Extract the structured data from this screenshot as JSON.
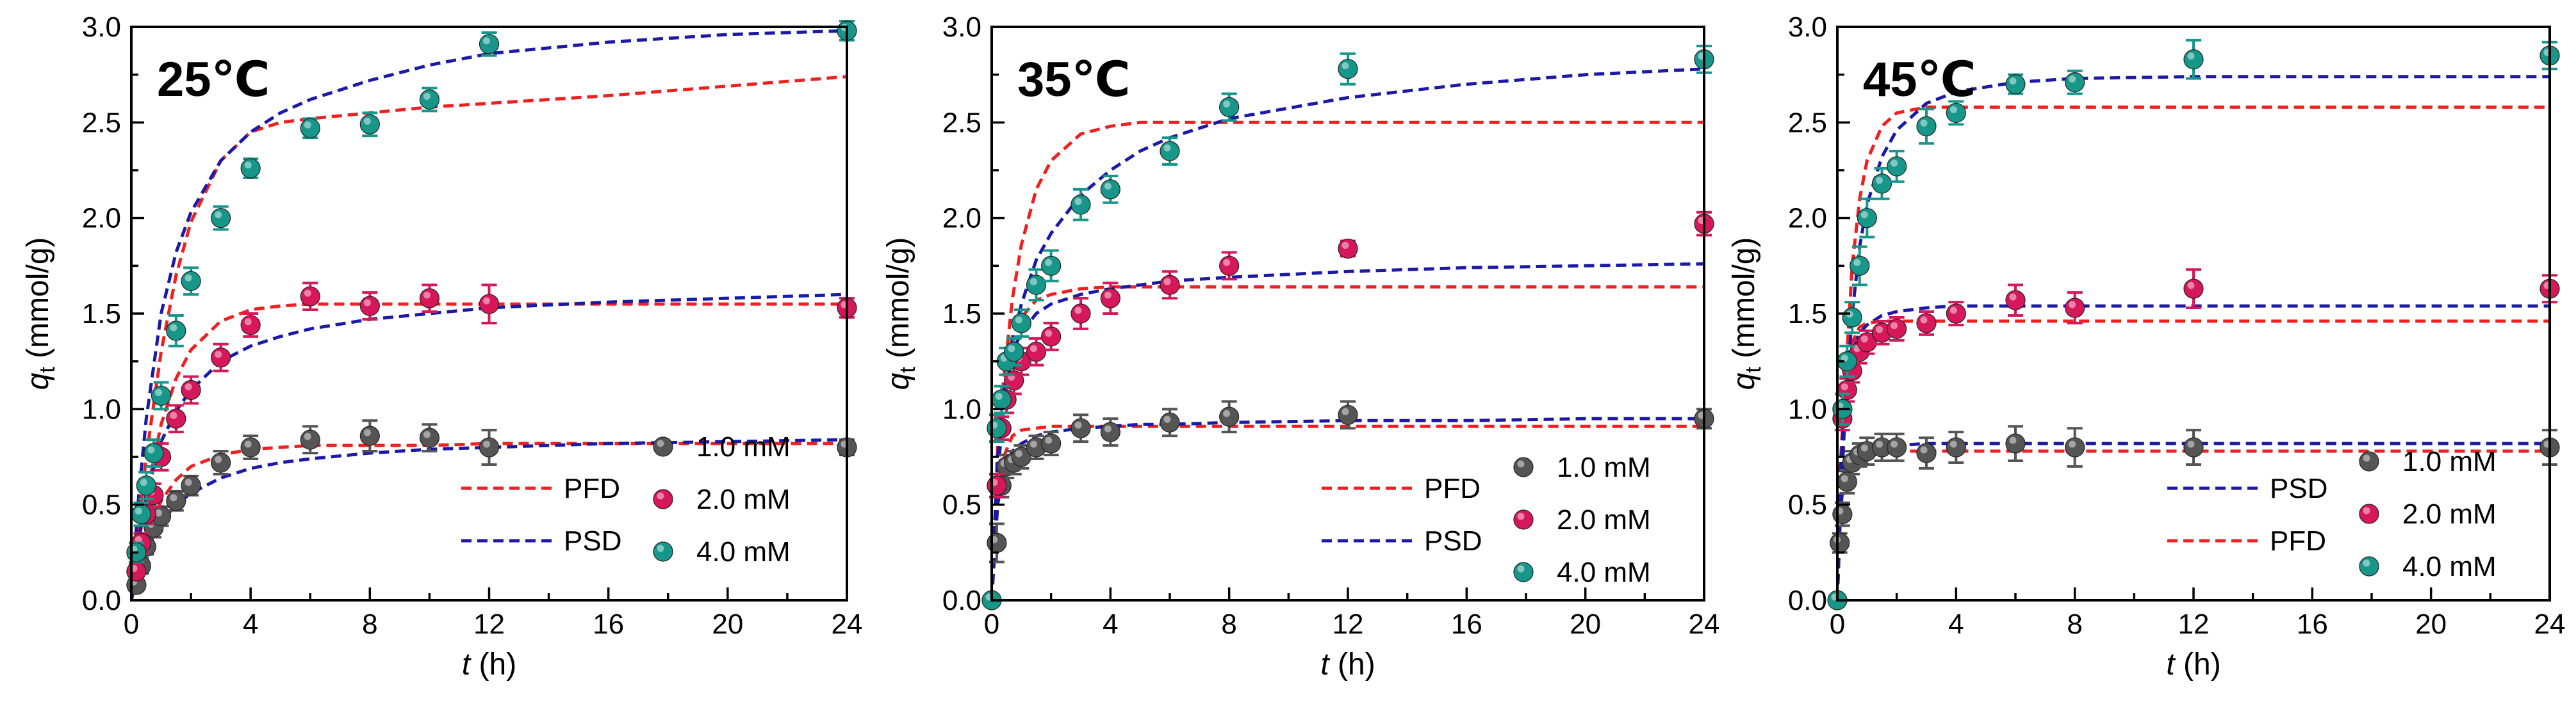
{
  "figure": {
    "ylabel_symbol": "q",
    "ylabel_sub": "t",
    "ylabel_unit": " (mmol/g)",
    "xlabel_symbol": "t",
    "xlabel_unit": " (h)"
  },
  "colors": {
    "c1": "#555555",
    "c2": "#d6175a",
    "c4": "#17968a",
    "pfd": "#ee2020",
    "psd": "#1a1aa6"
  },
  "chart_data": [
    {
      "type": "scatter",
      "title": "25℃",
      "xlabel": "t (h)",
      "ylabel": "qt (mmol/g)",
      "xlim": [
        0,
        24
      ],
      "ylim": [
        0,
        3.0
      ],
      "xticks": [
        "0",
        "4",
        "8",
        "12",
        "16",
        "20",
        "24"
      ],
      "yticks": [
        "0.0",
        "0.5",
        "1.0",
        "1.5",
        "2.0",
        "2.5",
        "3.0"
      ],
      "legend": [
        {
          "name": "PFD",
          "kind": "line",
          "color": "pfd"
        },
        {
          "name": "PSD",
          "kind": "line",
          "color": "psd"
        },
        {
          "name": "1.0 mM",
          "kind": "marker",
          "color": "c1"
        },
        {
          "name": "2.0 mM",
          "kind": "marker",
          "color": "c2"
        },
        {
          "name": "4.0 mM",
          "kind": "marker",
          "color": "c4"
        }
      ],
      "series": [
        {
          "name": "1.0 mM",
          "color": "c1",
          "x": [
            0.17,
            0.33,
            0.5,
            0.75,
            1,
            1.5,
            2,
            3,
            4,
            6,
            8,
            10,
            12,
            24
          ],
          "y": [
            0.08,
            0.18,
            0.28,
            0.38,
            0.44,
            0.52,
            0.6,
            0.72,
            0.8,
            0.84,
            0.86,
            0.85,
            0.8,
            0.8
          ],
          "err": [
            0.03,
            0.04,
            0.04,
            0.05,
            0.05,
            0.05,
            0.05,
            0.06,
            0.06,
            0.07,
            0.08,
            0.07,
            0.09,
            0.04
          ]
        },
        {
          "name": "2.0 mM",
          "color": "c2",
          "x": [
            0.17,
            0.33,
            0.5,
            0.75,
            1,
            1.5,
            2,
            3,
            4,
            6,
            8,
            10,
            12,
            24
          ],
          "y": [
            0.15,
            0.3,
            0.45,
            0.55,
            0.75,
            0.95,
            1.1,
            1.27,
            1.44,
            1.59,
            1.54,
            1.58,
            1.55,
            1.53
          ],
          "err": [
            0.04,
            0.05,
            0.05,
            0.06,
            0.07,
            0.07,
            0.07,
            0.07,
            0.06,
            0.07,
            0.07,
            0.07,
            0.1,
            0.05
          ]
        },
        {
          "name": "4.0 mM",
          "color": "c4",
          "x": [
            0.17,
            0.33,
            0.5,
            0.75,
            1,
            1.5,
            2,
            3,
            4,
            6,
            8,
            10,
            12,
            24
          ],
          "y": [
            0.25,
            0.45,
            0.6,
            0.77,
            1.07,
            1.41,
            1.67,
            2.0,
            2.26,
            2.47,
            2.49,
            2.62,
            2.91,
            2.98
          ],
          "err": [
            0.05,
            0.06,
            0.07,
            0.07,
            0.07,
            0.08,
            0.07,
            0.06,
            0.05,
            0.05,
            0.06,
            0.06,
            0.06,
            0.05
          ]
        }
      ],
      "fits": [
        {
          "model": "PFD",
          "color": "pfd",
          "x": [
            0,
            0.25,
            0.5,
            1,
            1.5,
            2,
            3,
            4,
            5,
            6,
            8,
            10,
            12,
            16,
            20,
            24
          ],
          "curves": [
            [
              0,
              0.18,
              0.33,
              0.52,
              0.63,
              0.7,
              0.76,
              0.79,
              0.8,
              0.81,
              0.81,
              0.81,
              0.82,
              0.82,
              0.82,
              0.82
            ],
            [
              0,
              0.3,
              0.55,
              0.92,
              1.16,
              1.31,
              1.46,
              1.52,
              1.54,
              1.55,
              1.55,
              1.55,
              1.55,
              1.55,
              1.55,
              1.55
            ],
            [
              0,
              0.4,
              0.75,
              1.3,
              1.7,
              1.98,
              2.3,
              2.45,
              2.5,
              2.52,
              2.55,
              2.58,
              2.6,
              2.64,
              2.69,
              2.74
            ]
          ]
        },
        {
          "model": "PSD",
          "color": "psd",
          "x": [
            0,
            0.25,
            0.5,
            1,
            1.5,
            2,
            3,
            4,
            5,
            6,
            8,
            10,
            12,
            16,
            20,
            24
          ],
          "curves": [
            [
              0,
              0.16,
              0.27,
              0.41,
              0.5,
              0.56,
              0.64,
              0.69,
              0.72,
              0.74,
              0.77,
              0.79,
              0.8,
              0.82,
              0.83,
              0.84
            ],
            [
              0,
              0.32,
              0.55,
              0.83,
              0.99,
              1.1,
              1.25,
              1.33,
              1.38,
              1.42,
              1.47,
              1.5,
              1.53,
              1.56,
              1.58,
              1.6
            ],
            [
              0,
              0.55,
              0.95,
              1.5,
              1.82,
              2.03,
              2.3,
              2.45,
              2.55,
              2.62,
              2.72,
              2.8,
              2.86,
              2.92,
              2.96,
              2.98
            ]
          ]
        }
      ]
    },
    {
      "type": "scatter",
      "title": "35℃",
      "xlabel": "t (h)",
      "ylabel": "qt (mmol/g)",
      "xlim": [
        0,
        24
      ],
      "ylim": [
        0,
        3.0
      ],
      "xticks": [
        "0",
        "4",
        "8",
        "12",
        "16",
        "20",
        "24"
      ],
      "yticks": [
        "0.0",
        "0.5",
        "1.0",
        "1.5",
        "2.0",
        "2.5",
        "3.0"
      ],
      "legend": [
        {
          "name": "PFD",
          "kind": "line",
          "color": "pfd"
        },
        {
          "name": "PSD",
          "kind": "line",
          "color": "psd"
        },
        {
          "name": "1.0 mM",
          "kind": "marker",
          "color": "c1"
        },
        {
          "name": "2.0 mM",
          "kind": "marker",
          "color": "c2"
        },
        {
          "name": "4.0 mM",
          "kind": "marker",
          "color": "c4"
        }
      ],
      "series": [
        {
          "name": "1.0 mM",
          "color": "c1",
          "x": [
            0.17,
            0.33,
            0.5,
            0.75,
            1,
            1.5,
            2,
            3,
            4,
            6,
            8,
            12,
            24
          ],
          "y": [
            0.3,
            0.6,
            0.7,
            0.72,
            0.75,
            0.8,
            0.82,
            0.9,
            0.88,
            0.93,
            0.96,
            0.97,
            0.95
          ],
          "err": [
            0.1,
            0.06,
            0.06,
            0.06,
            0.06,
            0.06,
            0.06,
            0.07,
            0.07,
            0.07,
            0.08,
            0.07,
            0.05
          ]
        },
        {
          "name": "2.0 mM",
          "color": "c2",
          "x": [
            0.17,
            0.33,
            0.5,
            0.75,
            1,
            1.5,
            2,
            3,
            4,
            6,
            8,
            12,
            24
          ],
          "y": [
            0.6,
            0.9,
            1.05,
            1.15,
            1.25,
            1.3,
            1.38,
            1.5,
            1.58,
            1.65,
            1.75,
            1.84,
            1.97
          ],
          "err": [
            0.06,
            0.06,
            0.07,
            0.07,
            0.07,
            0.07,
            0.07,
            0.08,
            0.08,
            0.07,
            0.07,
            0.04,
            0.06
          ]
        },
        {
          "name": "4.0 mM",
          "color": "c4",
          "x": [
            0,
            0.17,
            0.33,
            0.5,
            0.75,
            1,
            1.5,
            2,
            3,
            4,
            6,
            8,
            12,
            24
          ],
          "y": [
            0.0,
            0.9,
            1.05,
            1.25,
            1.3,
            1.45,
            1.65,
            1.75,
            2.07,
            2.15,
            2.35,
            2.58,
            2.78,
            2.83
          ],
          "err": [
            0.0,
            0.07,
            0.07,
            0.07,
            0.07,
            0.07,
            0.08,
            0.08,
            0.08,
            0.07,
            0.07,
            0.07,
            0.08,
            0.07
          ]
        }
      ],
      "fits": [
        {
          "model": "PFD",
          "color": "pfd",
          "x": [
            0,
            0.2,
            0.4,
            0.7,
            1,
            1.5,
            2,
            3,
            4,
            5,
            6,
            8,
            12,
            16,
            20,
            24
          ],
          "curves": [
            [
              0,
              0.55,
              0.75,
              0.86,
              0.89,
              0.9,
              0.91,
              0.91,
              0.91,
              0.91,
              0.91,
              0.91,
              0.91,
              0.91,
              0.91,
              0.91
            ],
            [
              0,
              0.8,
              1.15,
              1.38,
              1.48,
              1.57,
              1.6,
              1.63,
              1.64,
              1.64,
              1.64,
              1.64,
              1.64,
              1.64,
              1.64,
              1.64
            ],
            [
              0,
              0.7,
              1.15,
              1.58,
              1.86,
              2.15,
              2.3,
              2.44,
              2.48,
              2.5,
              2.5,
              2.5,
              2.5,
              2.5,
              2.5,
              2.5
            ]
          ]
        },
        {
          "model": "PSD",
          "color": "psd",
          "x": [
            0,
            0.2,
            0.4,
            0.7,
            1,
            1.5,
            2,
            3,
            4,
            5,
            6,
            8,
            12,
            16,
            20,
            24
          ],
          "curves": [
            [
              0,
              0.5,
              0.68,
              0.78,
              0.82,
              0.86,
              0.88,
              0.9,
              0.91,
              0.92,
              0.92,
              0.93,
              0.94,
              0.94,
              0.95,
              0.95
            ],
            [
              0,
              0.75,
              1.08,
              1.3,
              1.4,
              1.5,
              1.55,
              1.6,
              1.63,
              1.65,
              1.67,
              1.69,
              1.72,
              1.74,
              1.75,
              1.76
            ],
            [
              0,
              0.65,
              1.0,
              1.35,
              1.55,
              1.78,
              1.92,
              2.12,
              2.25,
              2.35,
              2.42,
              2.52,
              2.63,
              2.7,
              2.75,
              2.78
            ]
          ]
        }
      ]
    },
    {
      "type": "scatter",
      "title": "45℃",
      "xlabel": "t (h)",
      "ylabel": "qt (mmol/g)",
      "xlim": [
        0,
        24
      ],
      "ylim": [
        0,
        3.0
      ],
      "xticks": [
        "0",
        "4",
        "8",
        "12",
        "16",
        "20",
        "24"
      ],
      "yticks": [
        "0.0",
        "0.5",
        "1.0",
        "1.5",
        "2.0",
        "2.5",
        "3.0"
      ],
      "legend": [
        {
          "name": "PSD",
          "kind": "line",
          "color": "psd"
        },
        {
          "name": "PFD",
          "kind": "line",
          "color": "pfd"
        },
        {
          "name": "1.0 mM",
          "kind": "marker",
          "color": "c1"
        },
        {
          "name": "2.0 mM",
          "kind": "marker",
          "color": "c2"
        },
        {
          "name": "4.0 mM",
          "kind": "marker",
          "color": "c4"
        }
      ],
      "series": [
        {
          "name": "1.0 mM",
          "color": "c1",
          "x": [
            0.08,
            0.17,
            0.33,
            0.5,
            0.75,
            1,
            1.5,
            2,
            3,
            4,
            6,
            8,
            12,
            24
          ],
          "y": [
            0.3,
            0.45,
            0.62,
            0.72,
            0.76,
            0.78,
            0.8,
            0.8,
            0.77,
            0.8,
            0.82,
            0.8,
            0.8,
            0.8
          ],
          "err": [
            0.05,
            0.06,
            0.06,
            0.06,
            0.06,
            0.07,
            0.07,
            0.07,
            0.08,
            0.08,
            0.09,
            0.1,
            0.09,
            0.09
          ]
        },
        {
          "name": "2.0 mM",
          "color": "c2",
          "x": [
            0.17,
            0.33,
            0.5,
            0.75,
            1,
            1.5,
            2,
            3,
            4,
            6,
            8,
            12,
            24
          ],
          "y": [
            0.95,
            1.1,
            1.2,
            1.3,
            1.35,
            1.4,
            1.42,
            1.45,
            1.5,
            1.57,
            1.53,
            1.63,
            1.63
          ],
          "err": [
            0.06,
            0.06,
            0.06,
            0.06,
            0.06,
            0.06,
            0.06,
            0.06,
            0.06,
            0.08,
            0.08,
            0.1,
            0.07
          ]
        },
        {
          "name": "4.0 mM",
          "color": "c4",
          "x": [
            0,
            0.17,
            0.33,
            0.5,
            0.75,
            1,
            1.5,
            2,
            3,
            4,
            6,
            8,
            12,
            24
          ],
          "y": [
            0.0,
            1.0,
            1.25,
            1.48,
            1.75,
            2.0,
            2.18,
            2.27,
            2.48,
            2.55,
            2.7,
            2.71,
            2.83,
            2.85
          ],
          "err": [
            0.0,
            0.08,
            0.08,
            0.08,
            0.1,
            0.1,
            0.08,
            0.08,
            0.09,
            0.06,
            0.05,
            0.06,
            0.1,
            0.07
          ]
        }
      ],
      "fits": [
        {
          "model": "PFD",
          "color": "pfd",
          "x": [
            0,
            0.1,
            0.25,
            0.5,
            0.75,
            1,
            1.5,
            2,
            3,
            4,
            6,
            8,
            12,
            16,
            20,
            24
          ],
          "curves": [
            [
              0,
              0.45,
              0.72,
              0.77,
              0.78,
              0.78,
              0.78,
              0.78,
              0.78,
              0.78,
              0.78,
              0.78,
              0.78,
              0.78,
              0.78,
              0.78
            ],
            [
              0,
              0.7,
              1.1,
              1.35,
              1.43,
              1.45,
              1.46,
              1.46,
              1.46,
              1.46,
              1.46,
              1.46,
              1.46,
              1.46,
              1.46,
              1.46
            ],
            [
              0,
              0.5,
              1.1,
              1.75,
              2.1,
              2.3,
              2.48,
              2.55,
              2.58,
              2.58,
              2.58,
              2.58,
              2.58,
              2.58,
              2.58,
              2.58
            ]
          ]
        },
        {
          "model": "PSD",
          "color": "psd",
          "x": [
            0,
            0.1,
            0.25,
            0.5,
            0.75,
            1,
            1.5,
            2,
            3,
            4,
            6,
            8,
            12,
            16,
            20,
            24
          ],
          "curves": [
            [
              0,
              0.45,
              0.7,
              0.77,
              0.79,
              0.8,
              0.81,
              0.81,
              0.82,
              0.82,
              0.82,
              0.82,
              0.82,
              0.82,
              0.82,
              0.82
            ],
            [
              0,
              0.65,
              1.05,
              1.3,
              1.4,
              1.44,
              1.49,
              1.51,
              1.53,
              1.54,
              1.54,
              1.54,
              1.54,
              1.54,
              1.54,
              1.54
            ],
            [
              0,
              0.45,
              0.95,
              1.5,
              1.85,
              2.07,
              2.32,
              2.46,
              2.6,
              2.66,
              2.71,
              2.73,
              2.74,
              2.74,
              2.74,
              2.74
            ]
          ]
        }
      ]
    }
  ]
}
